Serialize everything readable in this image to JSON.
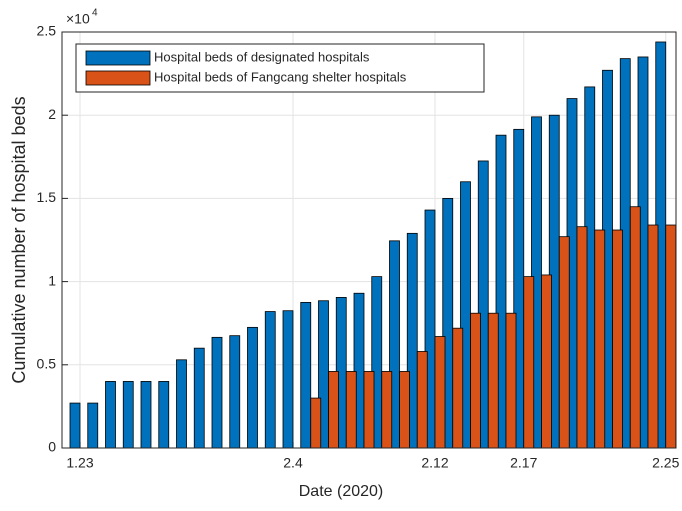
{
  "chart_data": {
    "type": "bar",
    "x_label": "Date (2020)",
    "y_label": "Cumulative number of hospital beds",
    "y_exponent_label": "×10",
    "y_exponent": "4",
    "categories": [
      "1.23",
      null,
      null,
      null,
      null,
      null,
      null,
      null,
      null,
      null,
      null,
      null,
      "2.4",
      null,
      null,
      null,
      null,
      null,
      null,
      null,
      "2.12",
      null,
      null,
      null,
      null,
      "2.17",
      null,
      null,
      null,
      null,
      null,
      null,
      null,
      "2.25"
    ],
    "series": [
      {
        "name": "Hospital beds of designated hospitals",
        "color": "#0072bd",
        "values": [
          2700,
          2700,
          4000,
          4000,
          4000,
          4000,
          5300,
          6000,
          6650,
          6750,
          7250,
          8200,
          8250,
          8750,
          8850,
          9050,
          9300,
          10300,
          12450,
          12900,
          14300,
          15000,
          16000,
          17250,
          18800,
          19150,
          19900,
          20000,
          21000,
          21700,
          22700,
          23400,
          23500,
          24400
        ]
      },
      {
        "name": "Hospital beds of Fangcang shelter hospitals",
        "color": "#d95319",
        "values": [
          null,
          null,
          null,
          null,
          null,
          null,
          null,
          null,
          null,
          null,
          null,
          null,
          null,
          3000,
          4600,
          4600,
          4600,
          4600,
          4600,
          5800,
          6700,
          7200,
          8100,
          8100,
          8100,
          10300,
          10400,
          12700,
          13300,
          13100,
          13100,
          14500,
          13400,
          13400
        ]
      }
    ],
    "ylim": [
      0,
      25000
    ],
    "yticks": [
      0,
      {
        "value": 5000,
        "label": "0.5"
      },
      {
        "value": 10000,
        "label": "1"
      },
      {
        "value": 15000,
        "label": "1.5"
      },
      {
        "value": 20000,
        "label": "2"
      },
      {
        "value": 25000,
        "label": "2.5"
      }
    ],
    "grid": true,
    "legend": "upper left"
  }
}
